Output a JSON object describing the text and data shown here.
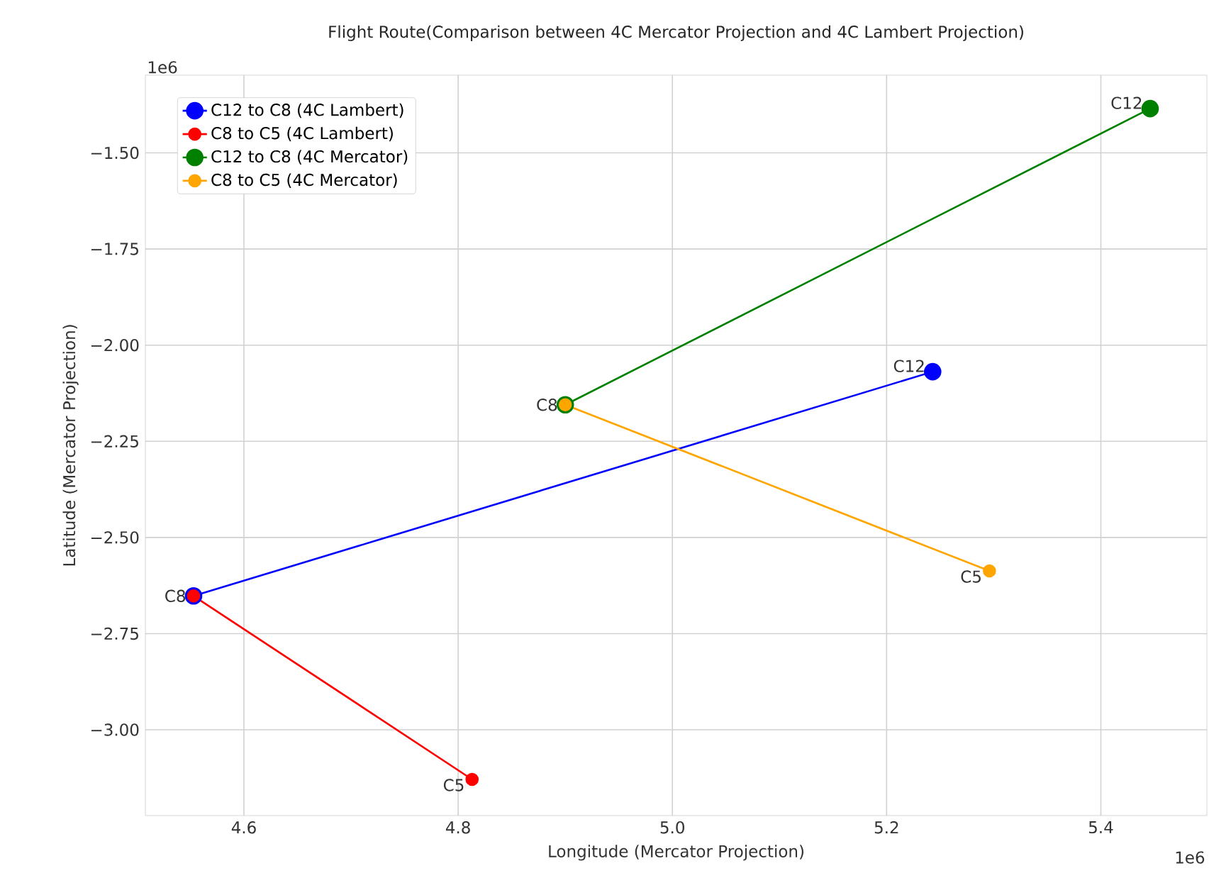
{
  "chart_data": {
    "type": "line",
    "title": "Flight Route(Comparison between 4C Mercator Projection and 4C Lambert Projection)",
    "xlabel": "Longitude (Mercator Projection)",
    "ylabel": "Latitude (Mercator Projection)",
    "series": [
      {
        "name": "C12 to C8 (4C Lambert)",
        "color": "#0000ff",
        "x": [
          5.243,
          4.553
        ],
        "values": [
          -2.069,
          -2.652
        ]
      },
      {
        "name": "C8 to C5 (4C Lambert)",
        "color": "#ff0000",
        "x": [
          4.553,
          4.813
        ],
        "values": [
          -2.652,
          -3.129
        ]
      },
      {
        "name": "C12 to C8 (4C Mercator)",
        "color": "#008000",
        "x": [
          5.446,
          4.9
        ],
        "values": [
          -1.385,
          -2.155
        ]
      },
      {
        "name": "C8 to C5 (4C Mercator)",
        "color": "#ffa500",
        "x": [
          4.9,
          5.296
        ],
        "values": [
          -2.155,
          -2.587
        ]
      }
    ],
    "xlim": [
      4.508,
      5.499
    ],
    "ylim": [
      -3.223,
      -1.298
    ],
    "xticks": [
      {
        "value": 4.6,
        "label": "4.6"
      },
      {
        "value": 4.8,
        "label": "4.8"
      },
      {
        "value": 5.0,
        "label": "5.0"
      },
      {
        "value": 5.2,
        "label": "5.2"
      },
      {
        "value": 5.4,
        "label": "5.4"
      }
    ],
    "yticks": [
      {
        "value": -3.0,
        "label": "−3.00"
      },
      {
        "value": -2.75,
        "label": "−2.75"
      },
      {
        "value": -2.5,
        "label": "−2.50"
      },
      {
        "value": -2.25,
        "label": "−2.25"
      },
      {
        "value": -2.0,
        "label": "−2.00"
      },
      {
        "value": -1.75,
        "label": "−1.75"
      },
      {
        "value": -1.5,
        "label": "−1.50"
      }
    ],
    "annotations": [
      "1e6",
      "1e6",
      {
        "text": "C12",
        "x": 5.243,
        "y": -2.069
      },
      {
        "text": "C8",
        "x": 4.553,
        "y": -2.652
      },
      {
        "text": "C5",
        "x": 4.813,
        "y": -3.129
      },
      {
        "text": "C12",
        "x": 5.446,
        "y": -1.385
      },
      {
        "text": "C8",
        "x": 4.9,
        "y": -2.155
      },
      {
        "text": "C5",
        "x": 5.296,
        "y": -2.587
      }
    ],
    "grid": true,
    "legend": "top left",
    "marker": "circle",
    "line_style": "solid"
  }
}
